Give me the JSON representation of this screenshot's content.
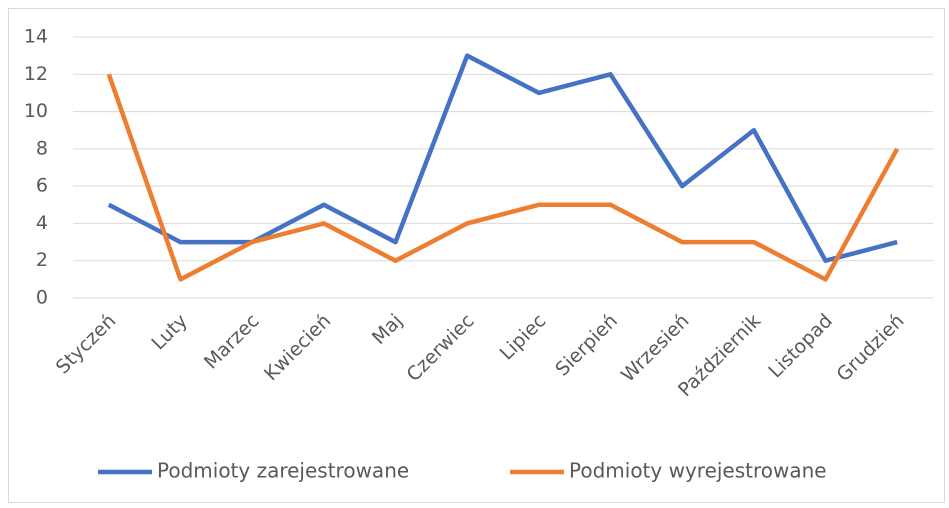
{
  "chart_data": {
    "type": "line",
    "categories": [
      "Styczeń",
      "Luty",
      "Marzec",
      "Kwiecień",
      "Maj",
      "Czerwiec",
      "Lipiec",
      "Sierpień",
      "Wrzesień",
      "Październik",
      "Listopad",
      "Grudzień"
    ],
    "series": [
      {
        "name": "Podmioty zarejestrowane",
        "color": "#4472c4",
        "values": [
          5,
          3,
          3,
          5,
          3,
          13,
          11,
          12,
          6,
          9,
          2,
          3
        ]
      },
      {
        "name": "Podmioty wyrejestrowane",
        "color": "#ed7d31",
        "values": [
          12,
          1,
          3,
          4,
          2,
          4,
          5,
          5,
          3,
          3,
          1,
          8
        ]
      }
    ],
    "ylim": [
      0,
      14
    ],
    "yticks": [
      0,
      2,
      4,
      6,
      8,
      10,
      12,
      14
    ],
    "grid": true,
    "legend": "bottom"
  }
}
